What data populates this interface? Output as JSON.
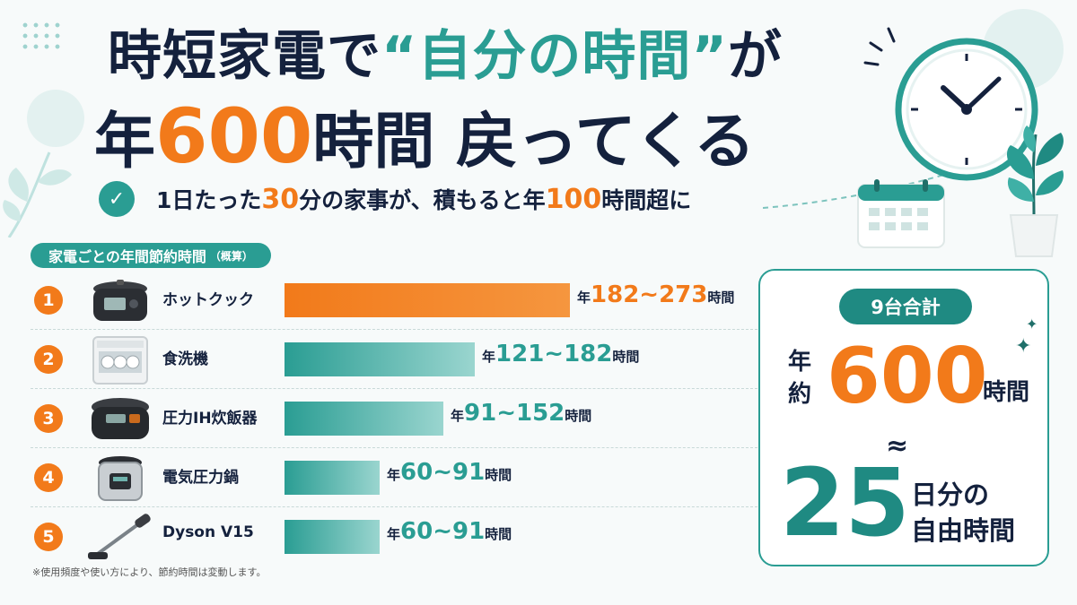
{
  "headline": {
    "line1_a": "時短家電で",
    "line1_q1": "“",
    "line1_teal": "自分の時間",
    "line1_q2": "”",
    "line1_b": "が",
    "line2_a": "年",
    "line2_num": "600",
    "line2_b": "時間 戻ってくる"
  },
  "subheadline": {
    "a": "1日たった",
    "num1": "30",
    "b": "分の家事が、積もると年",
    "num2": "100",
    "c": "時間超に"
  },
  "section_title": "家電ごとの年間節約時間",
  "section_note": "（概算）",
  "chart_data": {
    "type": "bar",
    "orientation": "horizontal",
    "title": "家電ごとの年間節約時間（概算）",
    "unit": "時間",
    "categories": [
      "ホットクック",
      "食洗機",
      "圧力IH炊飯器",
      "電気圧力鍋",
      "Dyson V15"
    ],
    "ranges": [
      [
        182,
        273
      ],
      [
        121,
        182
      ],
      [
        91,
        152
      ],
      [
        60,
        91
      ],
      [
        60,
        91
      ]
    ],
    "values": [
      273,
      182,
      152,
      91,
      91
    ],
    "value_labels": [
      "182~273",
      "121~182",
      "91~152",
      "60~91",
      "60~91"
    ],
    "ranks": [
      "1",
      "2",
      "3",
      "4",
      "5"
    ],
    "xlim": [
      0,
      273
    ],
    "colors": {
      "first": "#f27a1a",
      "others": "#2a9d93"
    }
  },
  "value_prefix": "年",
  "value_suffix": "時間",
  "footnote": "※使用頻度や使い方により、節約時間は変動します。",
  "total_card": {
    "pill": "9台合計",
    "yaku_1": "年",
    "yaku_2": "約",
    "total": "600",
    "total_unit": "時間",
    "approx": "≈",
    "days": "25",
    "days_label_1": "日分の",
    "days_label_2": "自由時間"
  },
  "colors": {
    "accent_orange": "#f27a1a",
    "accent_teal": "#2a9d93",
    "text_navy": "#14213d"
  },
  "icons": [
    "check-icon",
    "clock-icon",
    "calendar-icon",
    "plant-icon",
    "sparkle-icon"
  ]
}
